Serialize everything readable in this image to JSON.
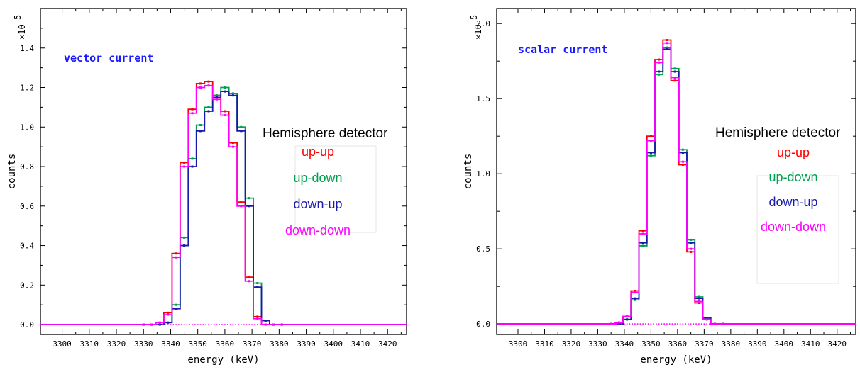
{
  "chart_data": [
    {
      "type": "line",
      "annotation": "vector current",
      "annotation_color": "#1a1aff",
      "xlabel": "energy  (keV)",
      "ylabel": "counts",
      "multiplier": "×10",
      "multiplier_exp": "5",
      "xlim": [
        3292,
        3427
      ],
      "ylim": [
        -0.05,
        1.6
      ],
      "x_ticks": [
        3300,
        3310,
        3320,
        3330,
        3340,
        3350,
        3360,
        3370,
        3380,
        3390,
        3400,
        3410,
        3420
      ],
      "y_ticks": [
        "0.0",
        "0.2",
        "0.4",
        "0.6",
        "0.8",
        "1.0",
        "1.2",
        "1.4"
      ],
      "legend_title": "Hemisphere detector",
      "x": [
        3330,
        3333,
        3336,
        3339,
        3342,
        3345,
        3348,
        3351,
        3354,
        3357,
        3360,
        3363,
        3366,
        3369,
        3372,
        3375,
        3378,
        3381
      ],
      "series": [
        {
          "name": "up-up",
          "color": "#ff0000",
          "values": [
            0.0,
            0.0,
            0.01,
            0.06,
            0.36,
            0.82,
            1.09,
            1.22,
            1.23,
            1.16,
            1.08,
            0.92,
            0.62,
            0.24,
            0.04,
            0.0,
            0.0,
            0.0
          ]
        },
        {
          "name": "up-down",
          "color": "#00a050",
          "values": [
            0.0,
            0.0,
            0.0,
            0.01,
            0.1,
            0.44,
            0.84,
            1.01,
            1.1,
            1.16,
            1.2,
            1.17,
            1.0,
            0.64,
            0.21,
            0.02,
            0.0,
            0.0
          ]
        },
        {
          "name": "down-up",
          "color": "#1a1aaa",
          "values": [
            0.0,
            0.0,
            0.0,
            0.01,
            0.08,
            0.4,
            0.8,
            0.98,
            1.08,
            1.15,
            1.18,
            1.16,
            0.98,
            0.6,
            0.19,
            0.02,
            0.0,
            0.0
          ]
        },
        {
          "name": "down-down",
          "color": "#ff00ff",
          "values": [
            0.0,
            0.0,
            0.01,
            0.05,
            0.34,
            0.8,
            1.07,
            1.2,
            1.21,
            1.14,
            1.06,
            0.9,
            0.6,
            0.22,
            0.03,
            0.0,
            0.0,
            0.0
          ]
        }
      ]
    },
    {
      "type": "line",
      "annotation": "scalar current",
      "annotation_color": "#1a1aff",
      "xlabel": "energy  (keV)",
      "ylabel": "counts",
      "multiplier": "×10",
      "multiplier_exp": "5",
      "xlim": [
        3292,
        3427
      ],
      "ylim": [
        -0.07,
        2.1
      ],
      "x_ticks": [
        3300,
        3310,
        3320,
        3330,
        3340,
        3350,
        3360,
        3370,
        3380,
        3390,
        3400,
        3410,
        3420
      ],
      "y_ticks": [
        "0.0",
        "0.5",
        "1.0",
        "1.5",
        "2.0"
      ],
      "legend_title": "Hemisphere detector",
      "x": [
        3335,
        3338,
        3341,
        3344,
        3347,
        3350,
        3353,
        3356,
        3359,
        3362,
        3365,
        3368,
        3371,
        3374,
        3377
      ],
      "series": [
        {
          "name": "up-up",
          "color": "#ff0000",
          "values": [
            0.0,
            0.01,
            0.05,
            0.22,
            0.62,
            1.25,
            1.76,
            1.89,
            1.62,
            1.06,
            0.48,
            0.14,
            0.03,
            0.0,
            0.0
          ]
        },
        {
          "name": "up-down",
          "color": "#00a050",
          "values": [
            0.0,
            0.0,
            0.03,
            0.16,
            0.52,
            1.12,
            1.66,
            1.84,
            1.7,
            1.16,
            0.56,
            0.18,
            0.04,
            0.0,
            0.0
          ]
        },
        {
          "name": "down-up",
          "color": "#1a1aaa",
          "values": [
            0.0,
            0.0,
            0.03,
            0.17,
            0.54,
            1.14,
            1.68,
            1.83,
            1.68,
            1.14,
            0.54,
            0.17,
            0.04,
            0.0,
            0.0
          ]
        },
        {
          "name": "down-down",
          "color": "#ff00ff",
          "values": [
            0.0,
            0.01,
            0.05,
            0.21,
            0.6,
            1.22,
            1.74,
            1.87,
            1.64,
            1.08,
            0.5,
            0.15,
            0.03,
            0.0,
            0.0
          ]
        }
      ]
    }
  ]
}
